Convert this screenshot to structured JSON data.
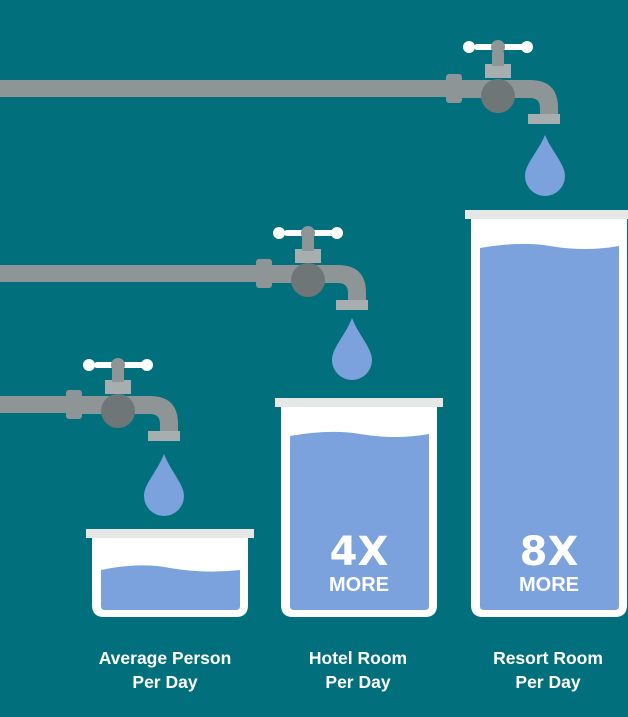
{
  "colors": {
    "background": "#02707c",
    "pipe": "#8e9597",
    "pipe_dark": "#6f7678",
    "handle": "#ffffff",
    "container": "#ffffff",
    "rim": "#e6e8e8",
    "water": "#7ba2dc",
    "drop": "#7ba2dc"
  },
  "items": [
    {
      "caption_line1": "Average Person",
      "caption_line2": "Per Day",
      "multiplier": "",
      "multiplier_sub": ""
    },
    {
      "caption_line1": "Hotel Room",
      "caption_line2": "Per Day",
      "multiplier": "4X",
      "multiplier_sub": "MORE"
    },
    {
      "caption_line1": "Resort Room",
      "caption_line2": "Per Day",
      "multiplier": "8X",
      "multiplier_sub": "MORE"
    }
  ]
}
